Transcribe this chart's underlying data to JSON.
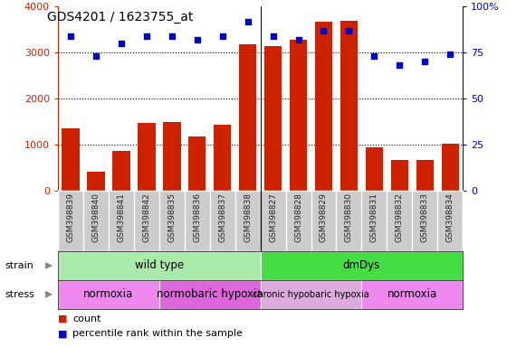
{
  "title": "GDS4201 / 1623755_at",
  "samples": [
    "GSM398839",
    "GSM398840",
    "GSM398841",
    "GSM398842",
    "GSM398835",
    "GSM398836",
    "GSM398837",
    "GSM398838",
    "GSM398827",
    "GSM398828",
    "GSM398829",
    "GSM398830",
    "GSM398831",
    "GSM398832",
    "GSM398833",
    "GSM398834"
  ],
  "counts": [
    1350,
    400,
    870,
    1470,
    1490,
    1170,
    1440,
    3180,
    3150,
    3270,
    3680,
    3690,
    930,
    670,
    670,
    1010
  ],
  "percentile_ranks": [
    84,
    73,
    80,
    84,
    84,
    82,
    84,
    92,
    84,
    82,
    87,
    87,
    73,
    68,
    70,
    74
  ],
  "bar_color": "#cc2200",
  "dot_color": "#0000cc",
  "left_ylim": [
    0,
    4000
  ],
  "right_ylim": [
    0,
    100
  ],
  "left_yticks": [
    0,
    1000,
    2000,
    3000,
    4000
  ],
  "right_yticks": [
    0,
    25,
    50,
    75,
    100
  ],
  "right_yticklabels": [
    "0",
    "25",
    "50",
    "75",
    "100%"
  ],
  "strain_groups": [
    {
      "label": "wild type",
      "start": 0,
      "end": 8,
      "color": "#aaeaaa"
    },
    {
      "label": "dmDys",
      "start": 8,
      "end": 16,
      "color": "#44dd44"
    }
  ],
  "stress_groups": [
    {
      "label": "normoxia",
      "start": 0,
      "end": 4,
      "color": "#ee88ee"
    },
    {
      "label": "normobaric hypoxia",
      "start": 4,
      "end": 8,
      "color": "#dd66dd"
    },
    {
      "label": "chronic hypobaric hypoxia",
      "start": 8,
      "end": 12,
      "color": "#ddaadd"
    },
    {
      "label": "normoxia",
      "start": 12,
      "end": 16,
      "color": "#ee88ee"
    }
  ],
  "tick_color_left": "#cc2200",
  "tick_color_right": "#0000cc",
  "separator_col": 8,
  "xlabels_bg": "#cccccc",
  "xlabels_divider": "#ffffff"
}
